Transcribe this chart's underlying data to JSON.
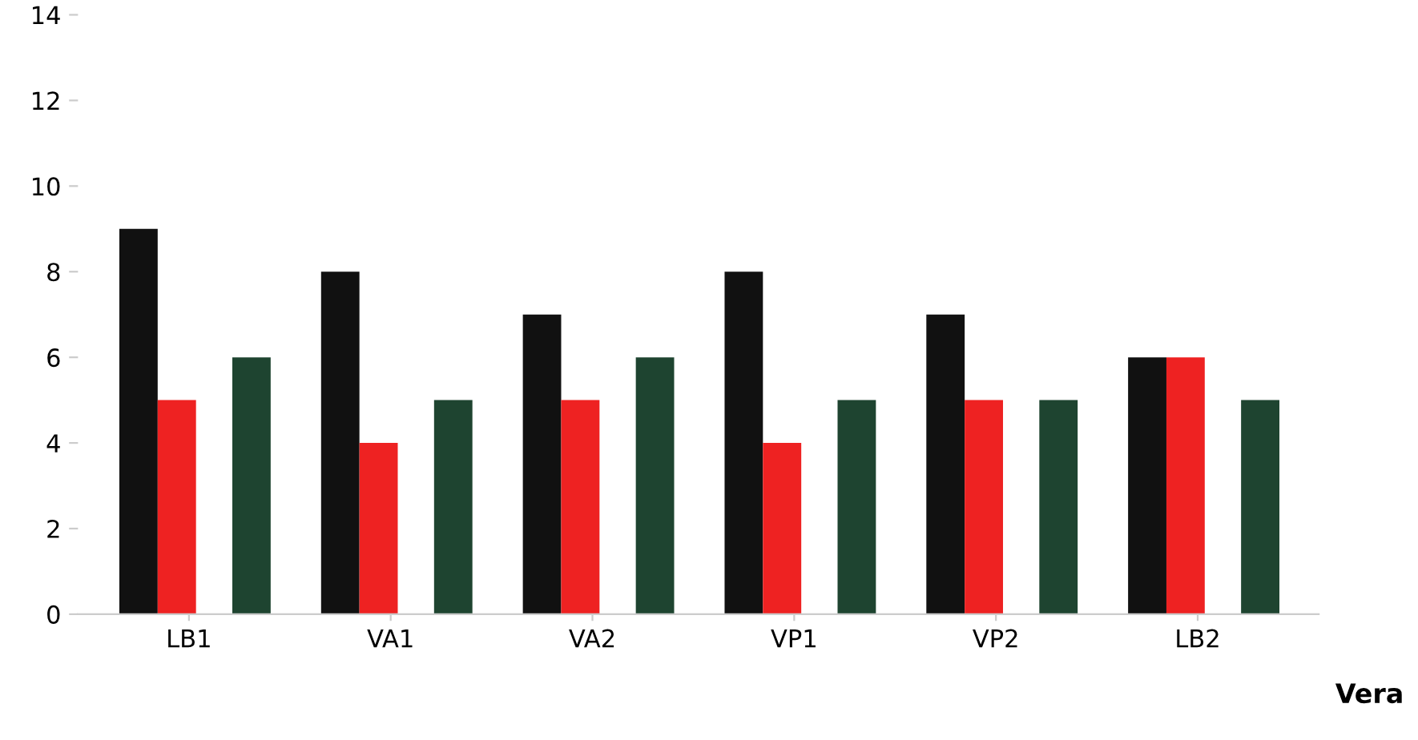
{
  "chart_data": {
    "type": "bar",
    "xlabel": "Vera",
    "categories": [
      "LB1",
      "VA1",
      "VA2",
      "VP1",
      "VP2",
      "LB2"
    ],
    "series": [
      {
        "color": "#111111",
        "values": [
          9,
          8,
          7,
          8,
          7,
          6
        ]
      },
      {
        "color": "#ee2222",
        "values": [
          5,
          4,
          5,
          4,
          5,
          6
        ]
      },
      {
        "color": "#1e4430",
        "values": [
          6,
          5,
          6,
          5,
          5,
          5
        ]
      }
    ],
    "ylim": [
      0,
      14
    ],
    "yticks": [
      0,
      2,
      4,
      6,
      8,
      10,
      12,
      14
    ],
    "grid": false,
    "legend": false
  }
}
